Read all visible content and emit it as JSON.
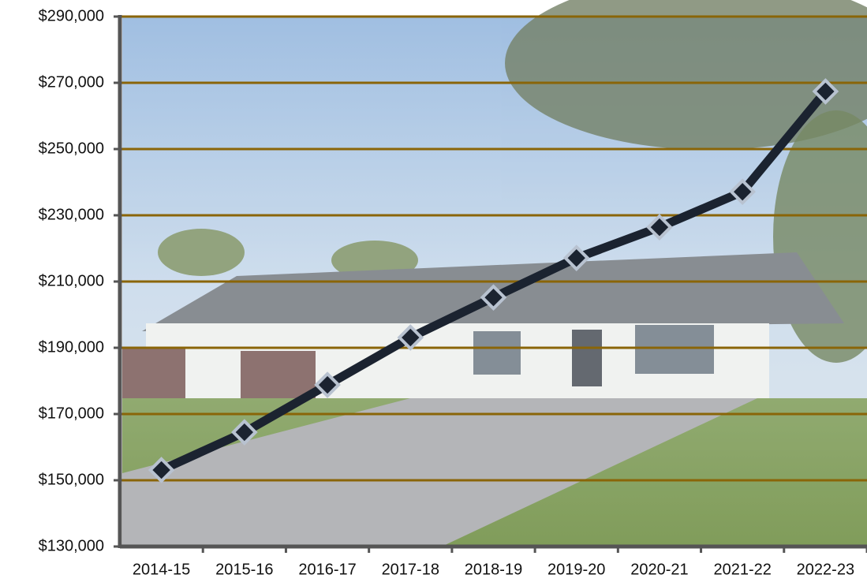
{
  "chart_data": {
    "type": "line",
    "categories": [
      "2014-15",
      "2015-16",
      "2016-17",
      "2017-18",
      "2018-19",
      "2019-20",
      "2020-21",
      "2021-22",
      "2022-23"
    ],
    "values": [
      153100,
      164500,
      178800,
      193100,
      205200,
      217100,
      226400,
      237100,
      267400
    ],
    "color": "#1b2330",
    "marker_stroke": "#b8c2d0",
    "ylim": [
      130000,
      290000
    ],
    "yticks": [
      {
        "value": 130000,
        "label": "$130,000"
      },
      {
        "value": 150000,
        "label": "$150,000"
      },
      {
        "value": 170000,
        "label": "$170,000"
      },
      {
        "value": 190000,
        "label": "$190,000"
      },
      {
        "value": 210000,
        "label": "$210,000"
      },
      {
        "value": 230000,
        "label": "$230,000"
      },
      {
        "value": 250000,
        "label": "$250,000"
      },
      {
        "value": 270000,
        "label": "$270,000"
      },
      {
        "value": 290000,
        "label": "$290,000"
      }
    ],
    "grid": true,
    "grid_color": "#8a6508"
  }
}
